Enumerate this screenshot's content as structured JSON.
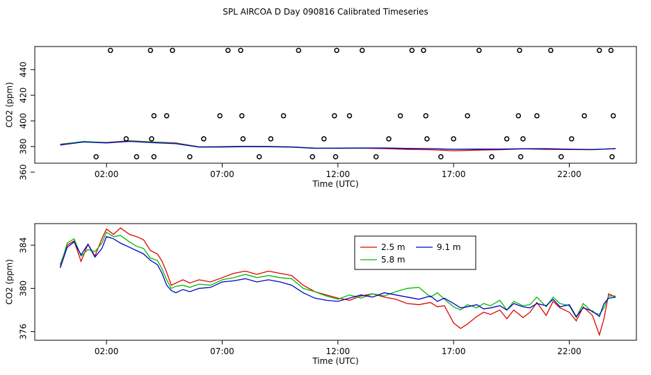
{
  "title": "SPL AIRCOA D  Day 090816  Calibrated Timeseries",
  "colors": {
    "s25": "#e00000",
    "s58": "#00bb00",
    "s91": "#0000cc",
    "axis": "#000000"
  },
  "chart_data": [
    {
      "type": "scatter",
      "ylabel": "CO2 (ppm)",
      "xlabel": "Time (UTC)",
      "x_ticks": [
        "02:00",
        "07:00",
        "12:00",
        "17:00",
        "22:00"
      ],
      "x_tick_hours": [
        2,
        7,
        12,
        17,
        22
      ],
      "xlim": [
        -1.1,
        24.9
      ],
      "ylim": [
        367,
        458
      ],
      "y_ticks": [
        360,
        380,
        400,
        420,
        440
      ],
      "calibration_points": {
        "x": [
          1.55,
          2.17,
          2.85,
          3.3,
          3.9,
          3.95,
          4.05,
          4.05,
          4.6,
          4.85,
          5.6,
          6.2,
          6.9,
          7.25,
          7.8,
          7.85,
          7.9,
          8.6,
          9.1,
          9.65,
          10.3,
          10.9,
          11.4,
          11.85,
          11.9,
          11.95,
          12.5,
          13.05,
          13.65,
          14.2,
          14.7,
          15.2,
          15.7,
          15.8,
          15.85,
          16.45,
          17.0,
          17.6,
          18.1,
          18.65,
          19.3,
          19.8,
          19.85,
          19.9,
          20.0,
          20.6,
          21.2,
          21.65,
          22.1,
          22.65,
          23.3,
          23.8,
          23.85,
          23.9
        ],
        "y": [
          372,
          455,
          386,
          372,
          455,
          386,
          404,
          372,
          404,
          455,
          372,
          386,
          404,
          455,
          455,
          404,
          386,
          372,
          386,
          404,
          455,
          372,
          386,
          404,
          372,
          455,
          404,
          455,
          372,
          386,
          404,
          455,
          455,
          404,
          386,
          372,
          386,
          404,
          455,
          372,
          386,
          404,
          455,
          372,
          386,
          404,
          455,
          372,
          386,
          404,
          455,
          455,
          372,
          404
        ]
      },
      "series": [
        {
          "name": "2.5 m",
          "key": "s25",
          "x": [
            0,
            1,
            2,
            3,
            4,
            5,
            6,
            7,
            8,
            9,
            10,
            11,
            12,
            13,
            14,
            15,
            16,
            17,
            18,
            19,
            20,
            21,
            22,
            23,
            24
          ],
          "values": [
            381.8,
            383.8,
            383.2,
            384.5,
            383.6,
            382.8,
            379.8,
            380.0,
            380.2,
            380.1,
            379.8,
            378.8,
            378.6,
            378.7,
            378.4,
            377.8,
            377.5,
            376.7,
            377.2,
            377.5,
            378.2,
            377.8,
            377.6,
            377.5,
            378.5
          ]
        },
        {
          "name": "5.8 m",
          "key": "s58",
          "x": [
            0,
            1,
            2,
            3,
            4,
            5,
            6,
            7,
            8,
            9,
            10,
            11,
            12,
            13,
            14,
            15,
            16,
            17,
            18,
            19,
            20,
            21,
            22,
            23,
            24
          ],
          "values": [
            381.5,
            384.0,
            383.0,
            384.2,
            383.4,
            382.5,
            379.7,
            379.9,
            380.1,
            380.0,
            379.7,
            378.8,
            378.8,
            378.9,
            378.9,
            378.6,
            378.4,
            377.8,
            377.9,
            377.9,
            378.3,
            378.4,
            377.9,
            377.7,
            378.4
          ]
        },
        {
          "name": "9.1 m",
          "key": "s91",
          "x": [
            0,
            1,
            2,
            3,
            4,
            5,
            6,
            7,
            8,
            9,
            10,
            11,
            12,
            13,
            14,
            15,
            16,
            17,
            18,
            19,
            20,
            21,
            22,
            23,
            24
          ],
          "values": [
            381.2,
            383.5,
            382.8,
            384.0,
            383.0,
            382.2,
            379.5,
            379.6,
            379.9,
            379.8,
            379.5,
            378.6,
            378.7,
            378.8,
            378.8,
            378.5,
            378.3,
            377.9,
            378.0,
            378.0,
            378.2,
            378.3,
            377.9,
            377.6,
            378.3
          ]
        }
      ]
    },
    {
      "type": "line",
      "ylabel": "CO2 (ppm)",
      "xlabel": "Time (UTC)",
      "x_ticks": [
        "02:00",
        "07:00",
        "12:00",
        "17:00",
        "22:00"
      ],
      "x_tick_hours": [
        2,
        7,
        12,
        17,
        22
      ],
      "xlim": [
        -1.1,
        24.9
      ],
      "ylim": [
        375.2,
        386.0
      ],
      "y_ticks": [
        376,
        380,
        384
      ],
      "legend": {
        "position": "top-center",
        "entries": [
          "2.5 m",
          "9.1 m",
          "5.8 m"
        ]
      },
      "series": [
        {
          "name": "2.5 m",
          "key": "s25",
          "x": [
            0.0,
            0.3,
            0.6,
            0.9,
            1.2,
            1.5,
            1.8,
            2.0,
            2.3,
            2.6,
            3.0,
            3.3,
            3.6,
            3.9,
            4.2,
            4.4,
            4.6,
            4.8,
            5.0,
            5.3,
            5.6,
            6.0,
            6.5,
            7.0,
            7.5,
            8.0,
            8.5,
            9.0,
            9.5,
            10.0,
            10.5,
            11.0,
            11.5,
            12.0,
            12.5,
            13.0,
            13.5,
            14.0,
            14.5,
            15.0,
            15.5,
            16.0,
            16.3,
            16.6,
            17.0,
            17.3,
            17.6,
            18.0,
            18.3,
            18.6,
            19.0,
            19.3,
            19.6,
            20.0,
            20.3,
            20.6,
            21.0,
            21.3,
            21.6,
            22.0,
            22.3,
            22.6,
            23.0,
            23.3,
            23.5,
            23.7,
            24.0
          ],
          "values": [
            382.2,
            384.0,
            384.4,
            382.5,
            384.1,
            383.0,
            384.6,
            385.5,
            385.0,
            385.6,
            385.0,
            384.8,
            384.5,
            383.5,
            383.2,
            382.5,
            381.5,
            380.3,
            380.5,
            380.8,
            380.5,
            380.8,
            380.6,
            381.0,
            381.4,
            381.6,
            381.3,
            381.6,
            381.4,
            381.2,
            380.3,
            379.7,
            379.4,
            379.1,
            378.9,
            379.3,
            379.5,
            379.2,
            379.0,
            378.6,
            378.5,
            378.7,
            378.3,
            378.4,
            376.8,
            376.3,
            376.7,
            377.4,
            377.8,
            377.6,
            378.0,
            377.2,
            378.0,
            377.3,
            377.8,
            378.7,
            377.5,
            378.8,
            378.2,
            377.8,
            377.0,
            378.3,
            377.5,
            375.7,
            377.2,
            379.5,
            379.2
          ]
        },
        {
          "name": "5.8 m",
          "key": "s58",
          "x": [
            0.0,
            0.3,
            0.6,
            0.9,
            1.2,
            1.5,
            1.8,
            2.0,
            2.3,
            2.6,
            3.0,
            3.3,
            3.6,
            3.9,
            4.2,
            4.4,
            4.6,
            4.8,
            5.0,
            5.3,
            5.6,
            6.0,
            6.5,
            7.0,
            7.5,
            8.0,
            8.5,
            9.0,
            9.5,
            10.0,
            10.5,
            11.0,
            11.5,
            12.0,
            12.5,
            13.0,
            13.5,
            14.0,
            14.5,
            15.0,
            15.5,
            16.0,
            16.3,
            16.6,
            17.0,
            17.3,
            17.6,
            18.0,
            18.3,
            18.6,
            19.0,
            19.3,
            19.6,
            20.0,
            20.3,
            20.6,
            21.0,
            21.3,
            21.6,
            22.0,
            22.3,
            22.6,
            23.0,
            23.3,
            23.5,
            23.7,
            24.0
          ],
          "values": [
            382.0,
            384.2,
            384.6,
            383.0,
            383.6,
            383.4,
            384.2,
            385.2,
            384.8,
            384.9,
            384.3,
            383.9,
            383.7,
            382.8,
            382.6,
            381.8,
            380.8,
            380.0,
            380.2,
            380.3,
            380.1,
            380.4,
            380.3,
            380.8,
            381.0,
            381.3,
            381.0,
            381.2,
            381.0,
            380.9,
            380.0,
            379.7,
            379.3,
            379.0,
            379.4,
            379.1,
            379.5,
            379.3,
            379.7,
            380.0,
            380.1,
            379.2,
            379.6,
            379.0,
            378.3,
            378.0,
            378.5,
            378.2,
            378.6,
            378.4,
            378.9,
            378.0,
            378.8,
            378.4,
            378.5,
            379.2,
            378.3,
            379.2,
            378.6,
            378.4,
            377.3,
            378.6,
            377.8,
            377.6,
            378.2,
            379.3,
            379.3
          ]
        },
        {
          "name": "9.1 m",
          "key": "s91",
          "x": [
            0.0,
            0.3,
            0.6,
            0.9,
            1.2,
            1.5,
            1.8,
            2.0,
            2.3,
            2.6,
            3.0,
            3.3,
            3.6,
            3.9,
            4.2,
            4.4,
            4.6,
            4.8,
            5.0,
            5.3,
            5.6,
            6.0,
            6.5,
            7.0,
            7.5,
            8.0,
            8.5,
            9.0,
            9.5,
            10.0,
            10.5,
            11.0,
            11.5,
            12.0,
            12.5,
            13.0,
            13.5,
            14.0,
            14.5,
            15.0,
            15.5,
            16.0,
            16.3,
            16.6,
            17.0,
            17.3,
            17.6,
            18.0,
            18.3,
            18.6,
            19.0,
            19.3,
            19.6,
            20.0,
            20.3,
            20.6,
            21.0,
            21.3,
            21.6,
            22.0,
            22.3,
            22.6,
            23.0,
            23.3,
            23.5,
            23.7,
            24.0
          ],
          "values": [
            381.9,
            383.8,
            384.3,
            383.1,
            384.1,
            382.9,
            383.7,
            384.8,
            384.6,
            384.2,
            383.8,
            383.5,
            383.2,
            382.6,
            382.2,
            381.4,
            380.3,
            379.8,
            379.6,
            379.9,
            379.7,
            380.0,
            380.1,
            380.6,
            380.7,
            380.9,
            380.6,
            380.8,
            380.6,
            380.3,
            379.6,
            379.1,
            378.9,
            378.8,
            379.1,
            379.4,
            379.2,
            379.6,
            379.4,
            379.2,
            379.0,
            379.3,
            378.8,
            379.1,
            378.6,
            378.2,
            378.3,
            378.5,
            378.1,
            378.2,
            378.4,
            378.0,
            378.6,
            378.3,
            378.2,
            378.6,
            378.4,
            379.0,
            378.3,
            378.5,
            377.4,
            378.2,
            377.9,
            377.4,
            378.6,
            379.1,
            379.2
          ]
        }
      ]
    }
  ]
}
